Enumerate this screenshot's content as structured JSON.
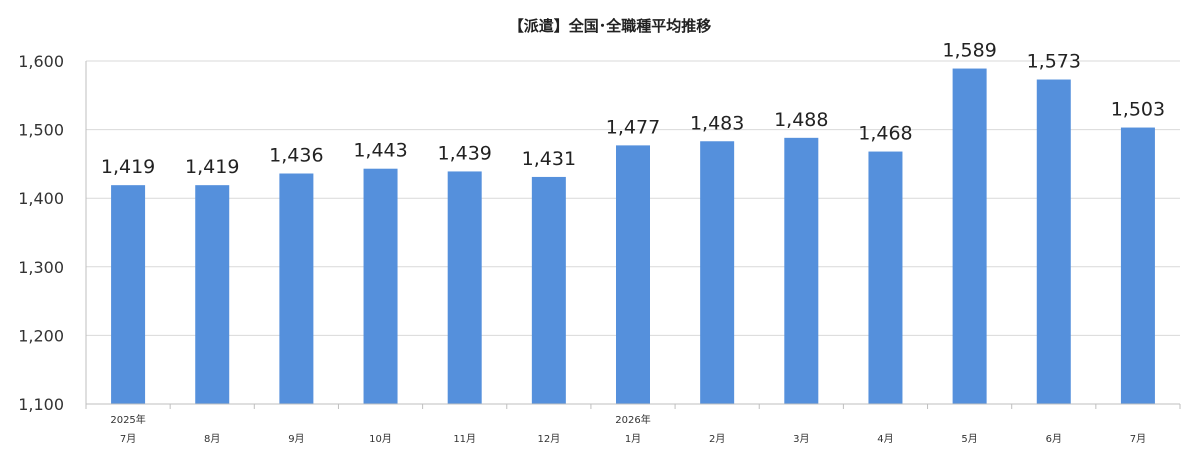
{
  "chart_data": {
    "type": "bar",
    "title": "【派遣】全国･全職種平均推移",
    "xlabel": "",
    "ylabel": "",
    "ylim": [
      1100,
      1600
    ],
    "yticks": [
      1100,
      1200,
      1300,
      1400,
      1500,
      1600
    ],
    "ytick_labels": [
      "1,100",
      "1,200",
      "1,300",
      "1,400",
      "1,500",
      "1,600"
    ],
    "grid": true,
    "bar_color": "#5590dc",
    "categories": [
      {
        "year": "2025年",
        "month": "7月"
      },
      {
        "year": "",
        "month": "8月"
      },
      {
        "year": "",
        "month": "9月"
      },
      {
        "year": "",
        "month": "10月"
      },
      {
        "year": "",
        "month": "11月"
      },
      {
        "year": "",
        "month": "12月"
      },
      {
        "year": "2026年",
        "month": "1月"
      },
      {
        "year": "",
        "month": "2月"
      },
      {
        "year": "",
        "month": "3月"
      },
      {
        "year": "",
        "month": "4月"
      },
      {
        "year": "",
        "month": "5月"
      },
      {
        "year": "",
        "month": "6月"
      },
      {
        "year": "",
        "month": "7月"
      }
    ],
    "values": [
      1419,
      1419,
      1436,
      1443,
      1439,
      1431,
      1477,
      1483,
      1488,
      1468,
      1589,
      1573,
      1503
    ],
    "data_labels": [
      "1,419",
      "1,419",
      "1,436",
      "1,443",
      "1,439",
      "1,431",
      "1,477",
      "1,483",
      "1,488",
      "1,468",
      "1,589",
      "1,573",
      "1,503"
    ]
  }
}
